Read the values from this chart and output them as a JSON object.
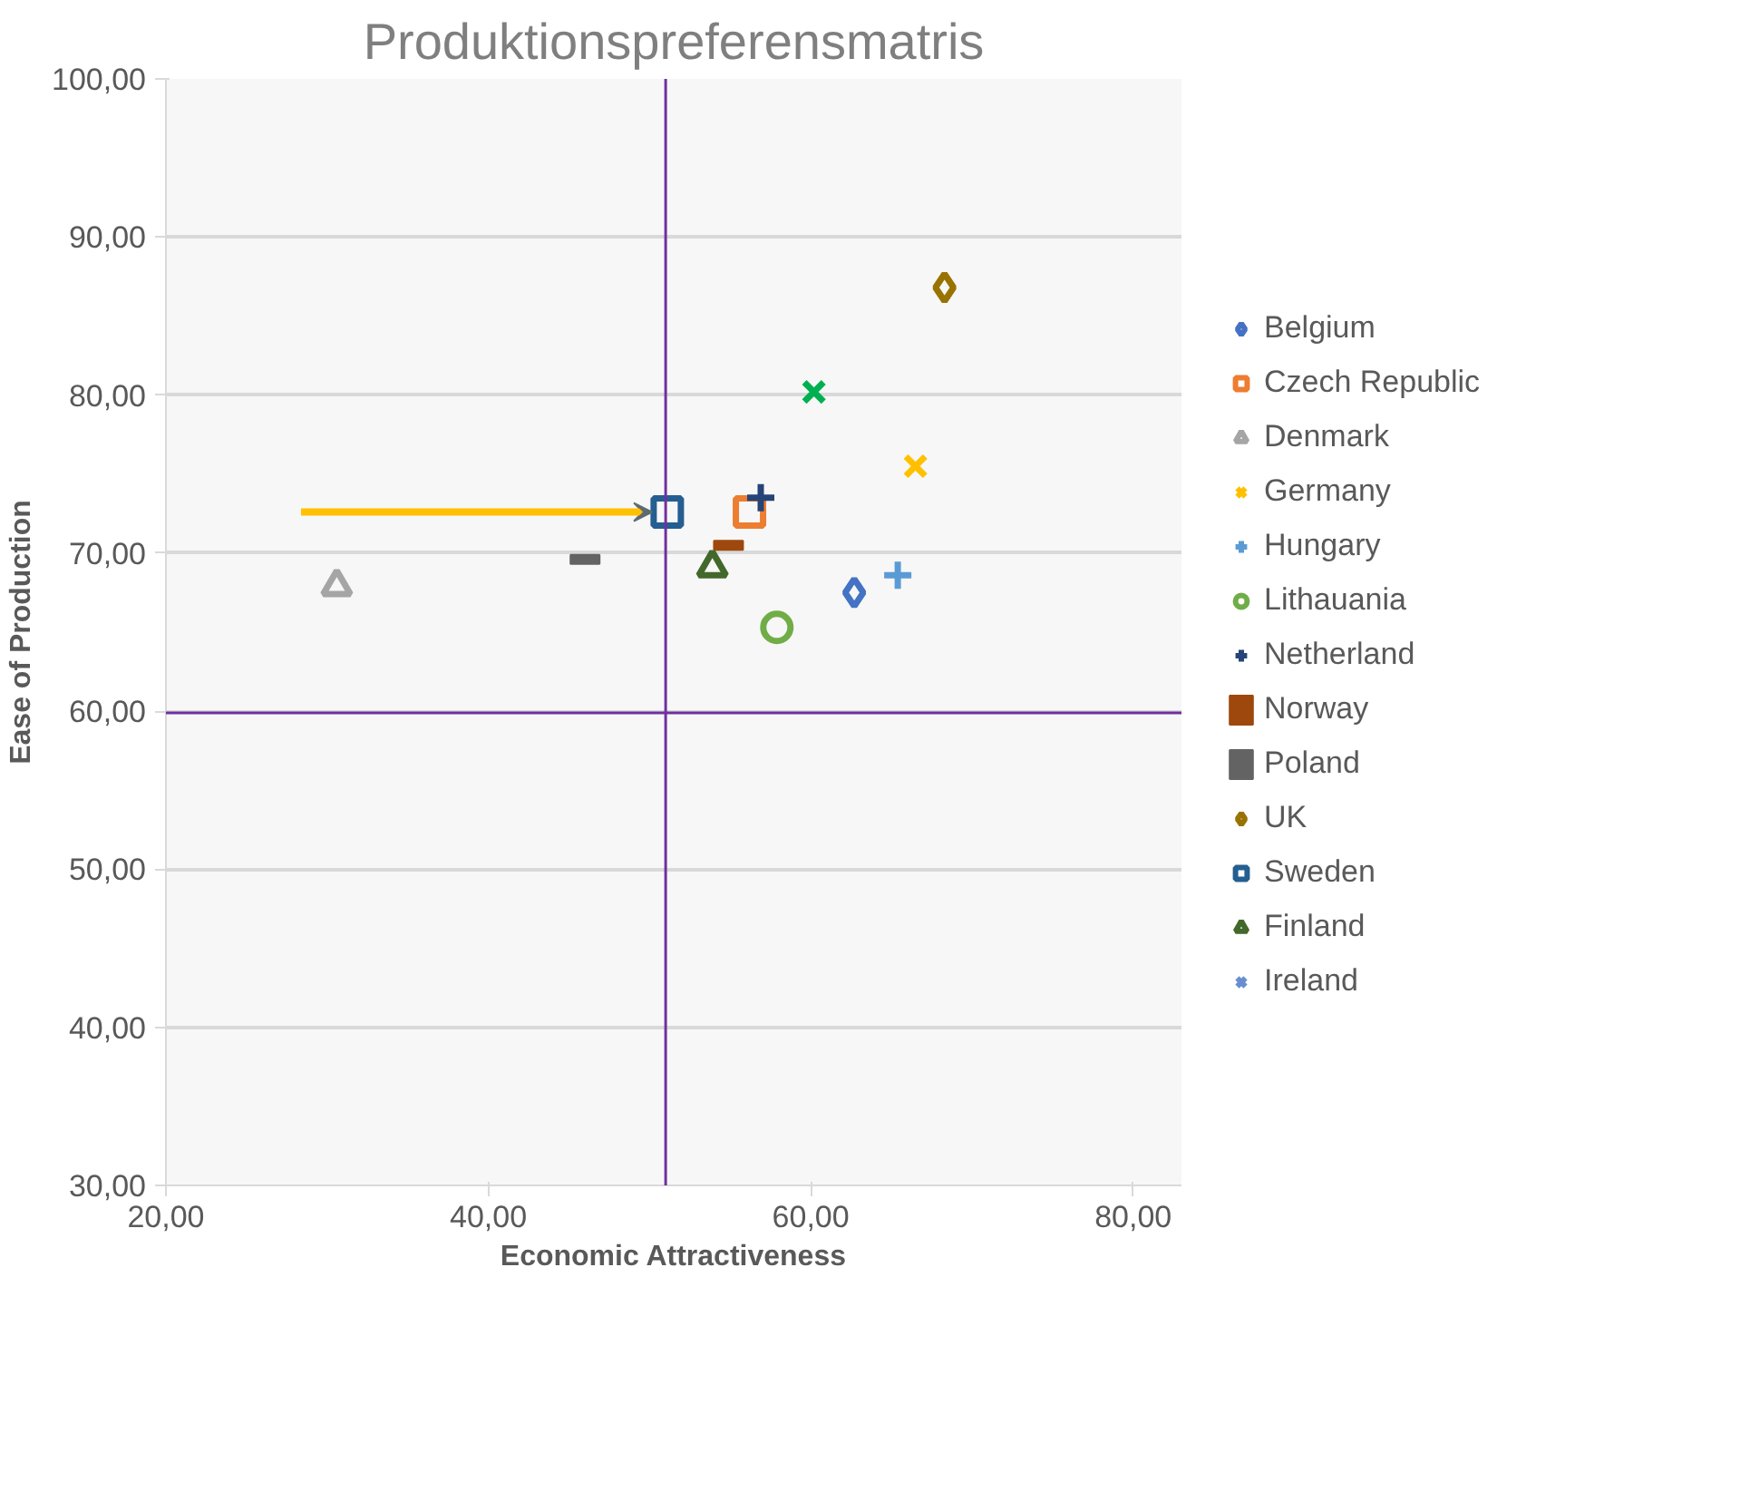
{
  "chart_data": {
    "type": "scatter",
    "title": "Produktionspreferensmatris",
    "xlabel": "Economic Attractiveness",
    "ylabel": "Ease of Production",
    "xlim": [
      20,
      83
    ],
    "ylim": [
      30,
      100
    ],
    "xticks": [
      {
        "value": 20,
        "label": "20,00"
      },
      {
        "value": 40,
        "label": "40,00"
      },
      {
        "value": 60,
        "label": "60,00"
      },
      {
        "value": 80,
        "label": "80,00"
      }
    ],
    "yticks": [
      {
        "value": 30,
        "label": "30,00"
      },
      {
        "value": 40,
        "label": "40,00"
      },
      {
        "value": 50,
        "label": "50,00"
      },
      {
        "value": 60,
        "label": "60,00"
      },
      {
        "value": 70,
        "label": "70,00"
      },
      {
        "value": 80,
        "label": "80,00"
      },
      {
        "value": 90,
        "label": "90,00"
      },
      {
        "value": 100,
        "label": "100,00"
      }
    ],
    "grid": "y",
    "legend": "right",
    "ref_lines": [
      {
        "axis": "x",
        "value": 51.0,
        "color": "#7030a0"
      },
      {
        "axis": "y",
        "value": 59.9,
        "color": "#7030a0"
      }
    ],
    "series": [
      {
        "name": "Belgium",
        "color": "#4472c4",
        "marker": "diamond",
        "x": [
          62.7
        ],
        "values": [
          67.5
        ]
      },
      {
        "name": "Czech Republic",
        "color": "#ed7d31",
        "marker": "square",
        "x": [
          56.2
        ],
        "values": [
          72.6
        ]
      },
      {
        "name": "Denmark",
        "color": "#a5a5a5",
        "marker": "triangle",
        "x": [
          30.6
        ],
        "values": [
          67.9
        ]
      },
      {
        "name": "Germany",
        "color": "#ffc000",
        "marker": "x",
        "x": [
          66.5
        ],
        "values": [
          75.5
        ]
      },
      {
        "name": "Hungary",
        "color": "#5b9bd5",
        "marker": "cross",
        "x": [
          65.4
        ],
        "values": [
          68.6
        ]
      },
      {
        "name": "Lithauania",
        "color": "#70ad47",
        "marker": "circle",
        "x": [
          57.9
        ],
        "values": [
          65.3
        ]
      },
      {
        "name": "Netherland",
        "color": "#264478",
        "marker": "cross",
        "x": [
          56.9
        ],
        "values": [
          73.5
        ]
      },
      {
        "name": "Norway",
        "color": "#9e480e",
        "x": [
          54.9
        ],
        "values": [
          70.5
        ]
      },
      {
        "name": "Poland",
        "color": "#636363",
        "x": [
          46.0
        ],
        "values": [
          69.6
        ]
      },
      {
        "name": "UK",
        "color": "#997300",
        "marker": "diamond",
        "x": [
          68.3
        ],
        "values": [
          86.8
        ]
      },
      {
        "name": "Sweden",
        "color": "#255e91",
        "marker": "square",
        "x": [
          51.1
        ],
        "values": [
          72.6
        ]
      },
      {
        "name": "Finland",
        "color": "#43682b",
        "marker": "triangle",
        "x": [
          53.9
        ],
        "values": [
          69.1
        ]
      },
      {
        "name": "Ireland",
        "color": "#698ed0",
        "marker": "x",
        "x": [
          null
        ],
        "values": [
          null
        ]
      },
      {
        "color": "#00b050",
        "marker": "x",
        "x": [
          60.2
        ],
        "values": [
          80.2
        ]
      }
    ]
  }
}
